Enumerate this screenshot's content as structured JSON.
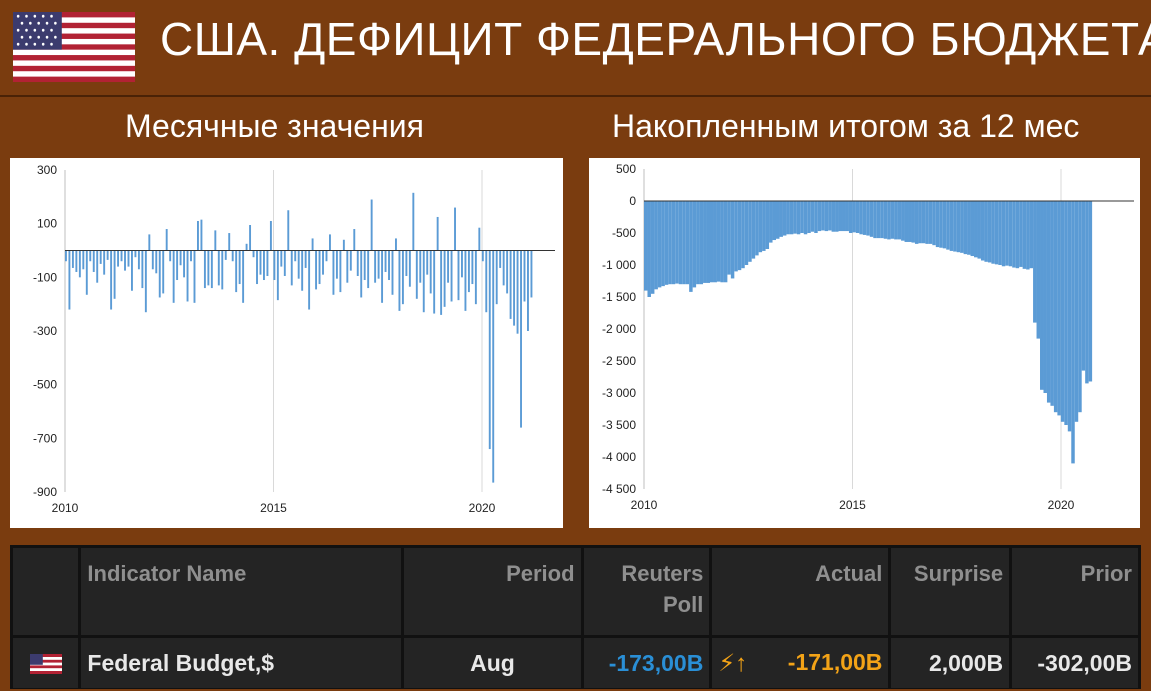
{
  "header": {
    "title": "США. ДЕФИЦИТ ФЕДЕРАЛЬНОГО БЮДЖЕТА",
    "subtitle_left": "Месячные значения",
    "subtitle_right": "Накопленным итогом за 12 мес"
  },
  "colors": {
    "background": "#7a3c0f",
    "bar": "#5b9bd5",
    "poll": "#2a8fd6",
    "actual": "#f3a317"
  },
  "chart_data": [
    {
      "type": "bar",
      "title": "",
      "ylim": [
        -900,
        300
      ],
      "yticks": [
        300,
        100,
        -100,
        -300,
        -500,
        -700,
        -900
      ],
      "xlim": [
        2010.0,
        2021.75
      ],
      "xticks": [
        2010,
        2015,
        2020
      ],
      "grid": "vertical",
      "x_start": 2010.0,
      "x_step": 0.0833,
      "values": [
        -40,
        -220,
        -65,
        -80,
        -100,
        -70,
        -165,
        -40,
        -80,
        -120,
        -50,
        -90,
        -35,
        -220,
        -180,
        -60,
        -40,
        -75,
        -60,
        -150,
        -25,
        -70,
        -140,
        -230,
        60,
        -70,
        -85,
        -175,
        -160,
        80,
        -40,
        -195,
        -110,
        -55,
        -100,
        -190,
        -40,
        -195,
        110,
        115,
        -140,
        -130,
        -140,
        75,
        -130,
        -145,
        -35,
        65,
        -40,
        -155,
        -125,
        -195,
        25,
        95,
        -25,
        -125,
        -90,
        -110,
        -95,
        110,
        -110,
        -185,
        -60,
        -95,
        150,
        -130,
        -40,
        -105,
        -150,
        -65,
        -220,
        45,
        -145,
        -125,
        -90,
        -40,
        60,
        -165,
        -105,
        -155,
        40,
        -120,
        -75,
        80,
        -95,
        -175,
        -110,
        -140,
        190,
        -120,
        -105,
        -195,
        -80,
        -110,
        -165,
        45,
        -225,
        -200,
        -95,
        -135,
        215,
        -180,
        -120,
        -230,
        -90,
        -160,
        -235,
        125,
        -240,
        -210,
        -120,
        -190,
        160,
        -185,
        -100,
        -225,
        -155,
        -125,
        -200,
        85,
        -40,
        -230,
        -740,
        -865,
        -200,
        -65,
        -130,
        -160,
        -255,
        -280,
        -310,
        -660,
        -190,
        -300,
        -175
      ]
    },
    {
      "type": "bar",
      "title": "",
      "ylim": [
        -4500,
        500
      ],
      "yticks": [
        500,
        0,
        -500,
        -1000,
        -1500,
        -2000,
        -2500,
        -3000,
        -3500,
        -4000,
        -4500
      ],
      "ytick_labels": [
        "500",
        "0",
        "-500",
        "-1 000",
        "-1 500",
        "-2 000",
        "-2 500",
        "-3 000",
        "-3 500",
        "-4 000",
        "-4 500"
      ],
      "xlim": [
        2010.0,
        2021.75
      ],
      "xticks": [
        2010,
        2015,
        2020
      ],
      "grid": "vertical",
      "x_start": 2010.0,
      "x_step": 0.0833,
      "values": [
        -1400,
        -1500,
        -1450,
        -1380,
        -1350,
        -1330,
        -1310,
        -1300,
        -1300,
        -1290,
        -1300,
        -1300,
        -1300,
        -1420,
        -1350,
        -1300,
        -1300,
        -1280,
        -1280,
        -1270,
        -1270,
        -1260,
        -1270,
        -1270,
        -1150,
        -1210,
        -1100,
        -1080,
        -1050,
        -1000,
        -950,
        -900,
        -850,
        -800,
        -780,
        -750,
        -650,
        -610,
        -590,
        -560,
        -540,
        -520,
        -520,
        -510,
        -520,
        -500,
        -520,
        -500,
        -480,
        -500,
        -470,
        -460,
        -470,
        -460,
        -480,
        -480,
        -470,
        -470,
        -470,
        -500,
        -490,
        -500,
        -520,
        -530,
        -540,
        -560,
        -580,
        -580,
        -580,
        -590,
        -600,
        -590,
        -600,
        -600,
        -620,
        -640,
        -640,
        -650,
        -670,
        -660,
        -660,
        -670,
        -670,
        -690,
        -720,
        -730,
        -740,
        -760,
        -780,
        -790,
        -800,
        -810,
        -830,
        -840,
        -860,
        -880,
        -900,
        -930,
        -950,
        -960,
        -980,
        -990,
        -1000,
        -1020,
        -1010,
        -1020,
        -1040,
        -1050,
        -1030,
        -1060,
        -1070,
        -1050,
        -1900,
        -2150,
        -2950,
        -3000,
        -3150,
        -3200,
        -3300,
        -3350,
        -3450,
        -3500,
        -3600,
        -4100,
        -3450,
        -3300,
        -2650,
        -2850,
        -2820
      ]
    }
  ],
  "table": {
    "headers": {
      "name": "Indicator Name",
      "period": "Period",
      "poll_line1": "Reuters",
      "poll_line2": "Poll",
      "actual": "Actual",
      "surprise": "Surprise",
      "prior": "Prior"
    },
    "row": {
      "flag_icon": "us-flag-icon",
      "name": "Federal Budget,$",
      "period": "Aug",
      "poll": "-173,00B",
      "alert_icon": "bolt-up-icon",
      "actual": "-171,00B",
      "surprise": "2,000B",
      "prior": "-302,00B"
    }
  }
}
